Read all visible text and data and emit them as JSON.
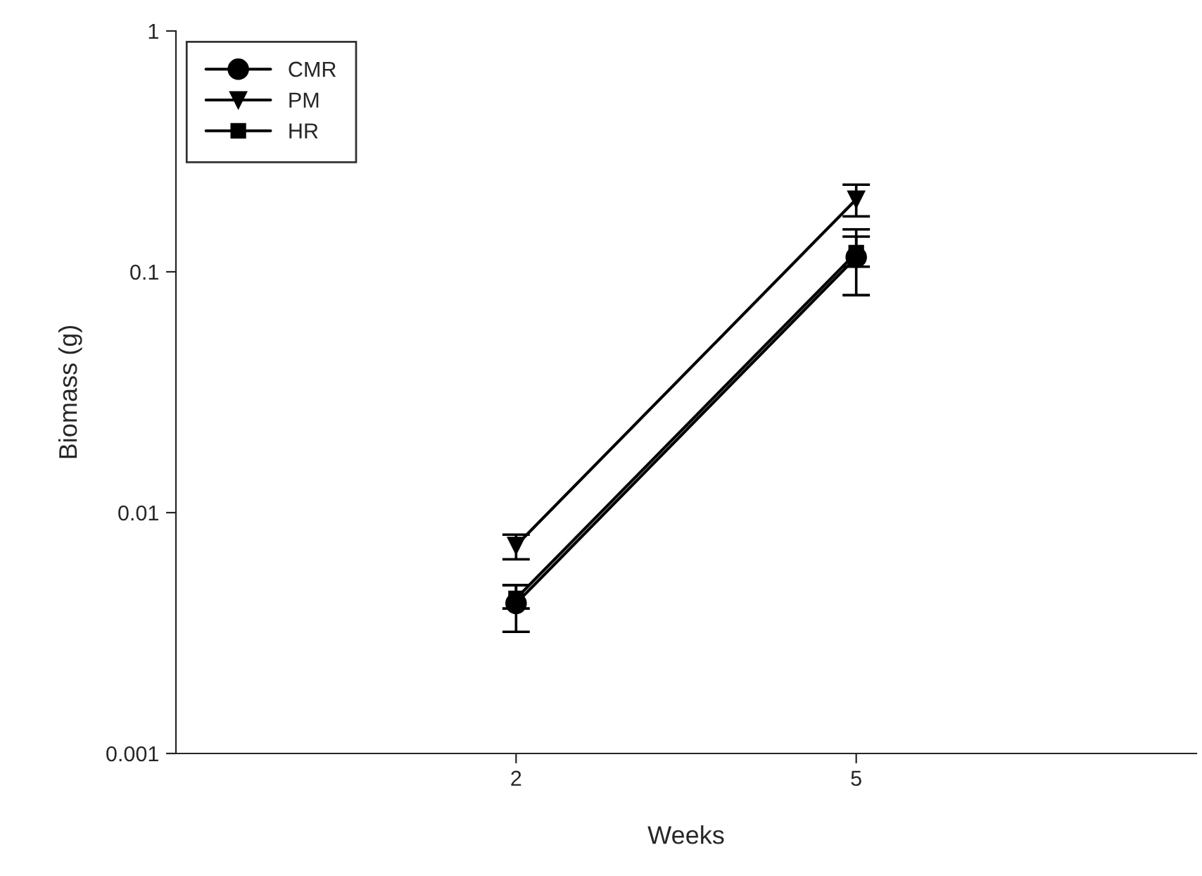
{
  "chart_data": {
    "type": "line",
    "xlabel": "Weeks",
    "ylabel": "Biomass (g)",
    "categories": [
      "2",
      "5"
    ],
    "log": "y",
    "ylim": [
      0.001,
      1
    ],
    "yticks": [
      0.001,
      0.01,
      0.1,
      1
    ],
    "grid": false,
    "legend": "top left",
    "series": [
      {
        "name": "CMR",
        "color": "#000000",
        "marker": "circle",
        "values": [
          0.0042,
          0.115
        ],
        "errors": [
          [
            0.0032,
            0.005
          ],
          [
            0.08,
            0.15
          ]
        ]
      },
      {
        "name": "PM",
        "color": "#000000",
        "marker": "triangle",
        "values": [
          0.0073,
          0.2
        ],
        "errors": [
          [
            0.0064,
            0.0081
          ],
          [
            0.17,
            0.23
          ]
        ]
      },
      {
        "name": "HR",
        "color": "#000000",
        "marker": "square",
        "values": [
          0.0044,
          0.12
        ],
        "errors": [
          [
            0.004,
            0.005
          ],
          [
            0.105,
            0.14
          ]
        ]
      }
    ]
  }
}
